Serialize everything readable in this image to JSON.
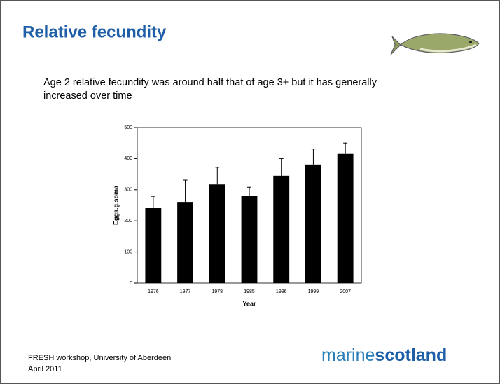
{
  "header": {
    "title": "Relative fecundity"
  },
  "body": {
    "text": "Age 2 relative fecundity was around half that of age 3+ but it has generally increased over time"
  },
  "footer": {
    "line1": "FRESH workshop, University of Aberdeen",
    "line2": "April 2011",
    "logo_part1": "marine",
    "logo_part2": "scotland"
  },
  "chart_data": {
    "type": "bar",
    "x_label": "Year",
    "y_label": "Eggs.g.soma",
    "categories": [
      "1976",
      "1977",
      "1978",
      "1985",
      "1996",
      "1999",
      "2007"
    ],
    "values": [
      241,
      261,
      317,
      281,
      345,
      381,
      415
    ],
    "errors": [
      38,
      70,
      55,
      27,
      55,
      50,
      35
    ],
    "color": "#000000",
    "ylim": [
      0,
      500
    ],
    "yticks": [
      0,
      100,
      200,
      300,
      400,
      500
    ]
  }
}
